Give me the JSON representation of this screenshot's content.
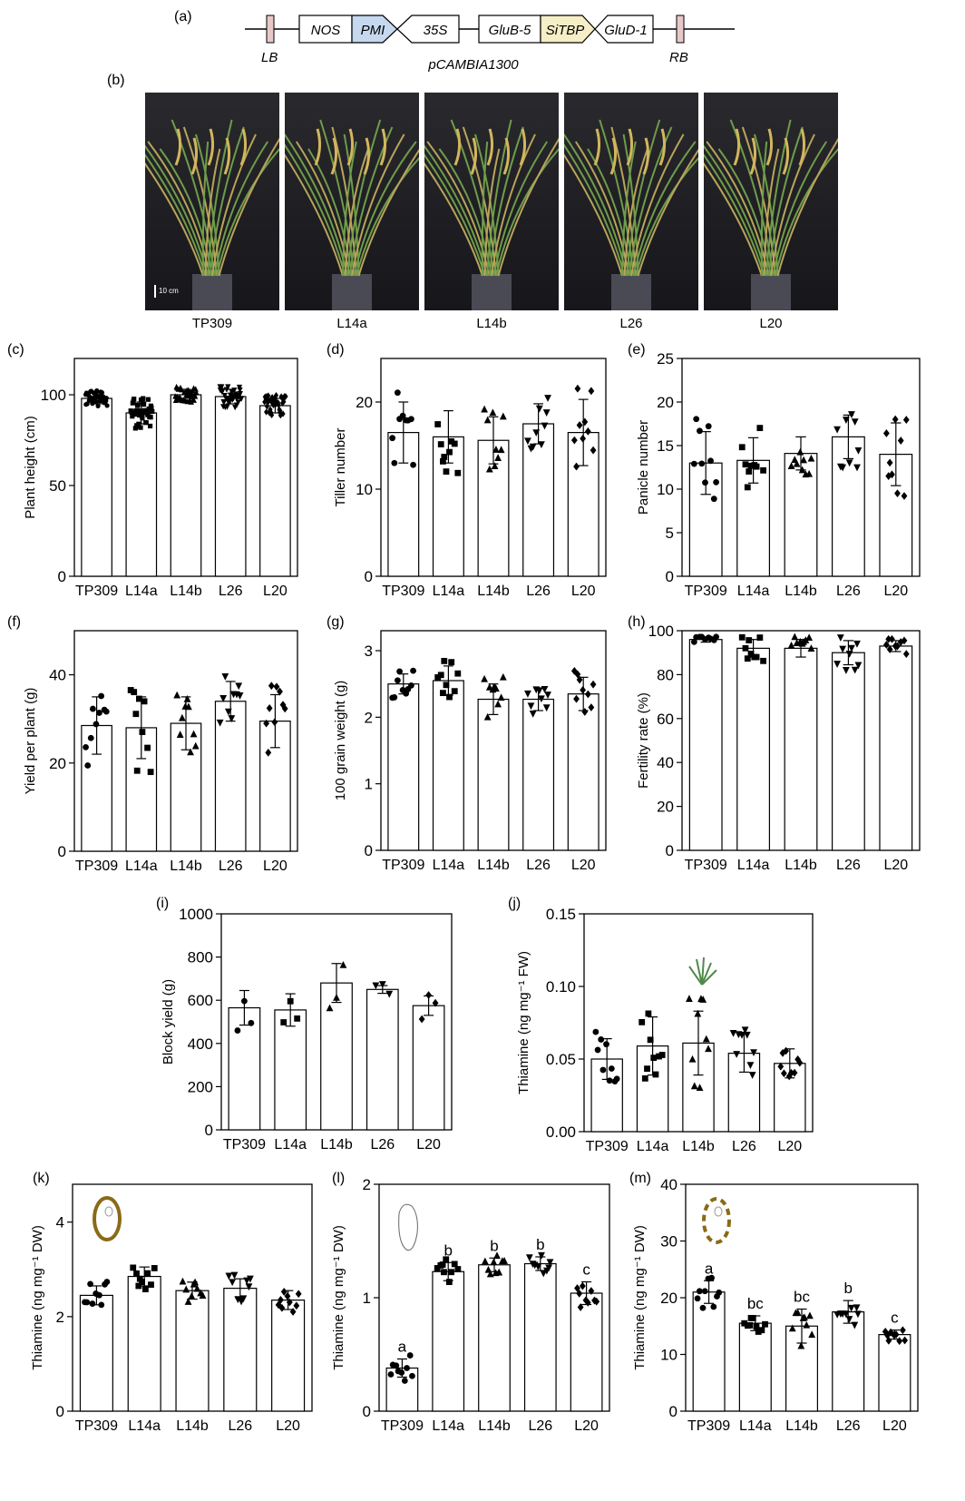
{
  "panel_labels": {
    "a": "(a)",
    "b": "(b)",
    "c": "(c)",
    "d": "(d)",
    "e": "(e)",
    "f": "(f)",
    "g": "(g)",
    "h": "(h)",
    "i": "(i)",
    "j": "(j)",
    "k": "(k)",
    "l": "(l)",
    "m": "(m)"
  },
  "construct": {
    "elements": [
      "NOS",
      "PMI",
      "35S",
      "GluB-5",
      "SiTBP",
      "GluD-1"
    ],
    "left_border": "LB",
    "right_border": "RB",
    "vector": "pCAMBIA1300",
    "colors": {
      "PMI": "#c5d8ee",
      "SiTBP": "#f6eec6",
      "border": "#e7c8c8"
    }
  },
  "photos": {
    "captions": [
      "TP309",
      "L14a",
      "L14b",
      "L26",
      "L20"
    ],
    "scale_bar": "10 cm"
  },
  "chart_data": [
    {
      "id": "c",
      "type": "bar",
      "categories": [
        "TP309",
        "L14a",
        "L14b",
        "L26",
        "L20"
      ],
      "values": [
        98,
        90,
        100,
        99,
        94
      ],
      "error": [
        3,
        6,
        3,
        4,
        4
      ],
      "ylabel": "Plant height (cm)",
      "ylim": [
        0,
        120
      ],
      "yticks": [
        0,
        50,
        100
      ],
      "n_points": 40,
      "letters": []
    },
    {
      "id": "d",
      "type": "bar",
      "categories": [
        "TP309",
        "L14a",
        "L14b",
        "L26",
        "L20"
      ],
      "values": [
        16.5,
        16,
        15.6,
        17.5,
        16.5
      ],
      "error": [
        3.5,
        3,
        2.7,
        2.3,
        3.8
      ],
      "ylabel": "Tiller number",
      "ylim": [
        0,
        25
      ],
      "yticks": [
        0,
        10,
        20
      ],
      "n_points": 9,
      "letters": []
    },
    {
      "id": "e",
      "type": "bar",
      "categories": [
        "TP309",
        "L14a",
        "L14b",
        "L26",
        "L20"
      ],
      "values": [
        13,
        13.3,
        14.1,
        16,
        14
      ],
      "error": [
        3.6,
        2.6,
        1.9,
        2.5,
        3.6
      ],
      "ylabel": "Panicle number",
      "ylim": [
        0,
        25
      ],
      "yticks": [
        0,
        5,
        10,
        15,
        20,
        25
      ],
      "n_points": 9,
      "letters": []
    },
    {
      "id": "f",
      "type": "bar",
      "categories": [
        "TP309",
        "L14a",
        "L14b",
        "L26",
        "L20"
      ],
      "values": [
        28.5,
        28,
        29,
        34,
        29.5
      ],
      "error": [
        6.5,
        7,
        6,
        4.5,
        6
      ],
      "ylabel": "Yield per plant (g)",
      "ylim": [
        0,
        50
      ],
      "yticks": [
        0,
        20,
        40
      ],
      "n_points": 9,
      "letters": []
    },
    {
      "id": "g",
      "type": "bar",
      "categories": [
        "TP309",
        "L14a",
        "L14b",
        "L26",
        "L20"
      ],
      "values": [
        2.5,
        2.55,
        2.27,
        2.27,
        2.35
      ],
      "error": [
        0.15,
        0.22,
        0.23,
        0.17,
        0.25
      ],
      "ylabel": "100 grain weight (g)",
      "ylim": [
        0,
        3.3
      ],
      "yticks": [
        0,
        1,
        2,
        3
      ],
      "n_points": 9,
      "letters": []
    },
    {
      "id": "h",
      "type": "bar",
      "categories": [
        "TP309",
        "L14a",
        "L14b",
        "L26",
        "L20"
      ],
      "values": [
        96,
        92,
        92,
        90,
        93
      ],
      "error": [
        1.2,
        4,
        4,
        5.5,
        2.5
      ],
      "ylabel": "Fertility rate (%)",
      "ylim": [
        0,
        100
      ],
      "yticks": [
        0,
        20,
        40,
        60,
        80,
        100
      ],
      "n_points": 9,
      "letters": []
    },
    {
      "id": "i",
      "type": "bar",
      "categories": [
        "TP309",
        "L14a",
        "L14b",
        "L26",
        "L20"
      ],
      "values": [
        565,
        555,
        680,
        650,
        575
      ],
      "error": [
        80,
        75,
        90,
        18,
        45
      ],
      "ylabel": "Block yield (g)",
      "ylim": [
        0,
        1000
      ],
      "yticks": [
        0,
        200,
        400,
        600,
        800,
        1000
      ],
      "n_points": 3,
      "letters": []
    },
    {
      "id": "j",
      "type": "bar",
      "categories": [
        "TP309",
        "L14a",
        "L14b",
        "L26",
        "L20"
      ],
      "values": [
        0.05,
        0.059,
        0.061,
        0.054,
        0.047
      ],
      "error": [
        0.014,
        0.02,
        0.022,
        0.013,
        0.01
      ],
      "ylabel": "Thiamine (ng mg⁻¹ FW)",
      "ylim": [
        0,
        0.15
      ],
      "yticks": [
        0,
        0.05,
        0.1,
        0.15
      ],
      "ytick_labels": [
        "0.00",
        "0.05",
        "0.10",
        "0.15"
      ],
      "n_points": 9,
      "letters": []
    },
    {
      "id": "k",
      "type": "bar",
      "categories": [
        "TP309",
        "L14a",
        "L14b",
        "L26",
        "L20"
      ],
      "values": [
        2.45,
        2.85,
        2.55,
        2.6,
        2.35
      ],
      "error": [
        0.2,
        0.2,
        0.18,
        0.2,
        0.2
      ],
      "ylabel": "Thiamine (ng mg⁻¹ DW)",
      "ylim": [
        0,
        4.8
      ],
      "yticks": [
        0,
        2,
        4
      ],
      "n_points": 9,
      "letters": []
    },
    {
      "id": "l",
      "type": "bar",
      "categories": [
        "TP309",
        "L14a",
        "L14b",
        "L26",
        "L20"
      ],
      "values": [
        0.38,
        1.23,
        1.29,
        1.3,
        1.04
      ],
      "error": [
        0.08,
        0.08,
        0.06,
        0.06,
        0.1
      ],
      "ylabel": "Thiamine (ng mg⁻¹ DW)",
      "ylim": [
        0,
        2
      ],
      "yticks": [
        0,
        1,
        2
      ],
      "n_points": 9,
      "letters": [
        "a",
        "b",
        "b",
        "b",
        "c"
      ]
    },
    {
      "id": "m",
      "type": "bar",
      "categories": [
        "TP309",
        "L14a",
        "L14b",
        "L26",
        "L20"
      ],
      "values": [
        21,
        15.5,
        15,
        17.5,
        13.5
      ],
      "error": [
        2,
        1.3,
        3,
        2,
        0.8
      ],
      "ylabel": "Thiamine (ng mg⁻¹ DW)",
      "ylim": [
        0,
        40
      ],
      "yticks": [
        0,
        10,
        20,
        30,
        40
      ],
      "n_points": 9,
      "letters": [
        "a",
        "bc",
        "bc",
        "b",
        "c"
      ]
    }
  ]
}
